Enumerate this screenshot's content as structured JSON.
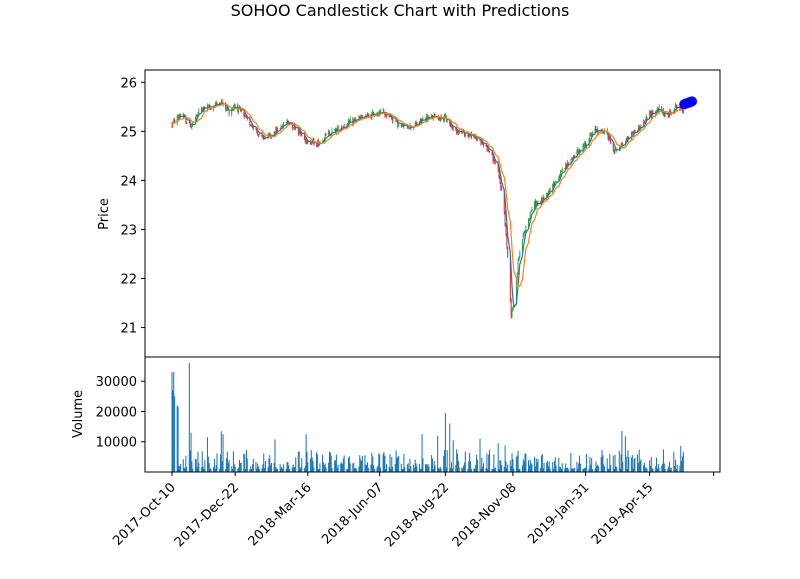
{
  "chart_data": {
    "type": "candlestick",
    "title": "SOHOO Candlestick Chart with Predictions",
    "price_panel": {
      "ylabel": "Price",
      "yticks": [
        21,
        22,
        23,
        24,
        25,
        26
      ],
      "ylim": [
        20.4,
        26.25
      ],
      "up_color": "#2ca02c",
      "down_color": "#d62728",
      "ma_colors": [
        "#1f77b4",
        "#ff7f0e"
      ],
      "prediction_color": "#0000ff",
      "waypoints": [
        [
          "2017-10-10",
          25.15
        ],
        [
          "2017-10-20",
          25.35
        ],
        [
          "2017-11-01",
          25.1
        ],
        [
          "2017-11-12",
          25.45
        ],
        [
          "2017-11-25",
          25.5
        ],
        [
          "2017-12-05",
          25.6
        ],
        [
          "2017-12-15",
          25.4
        ],
        [
          "2017-12-22",
          25.55
        ],
        [
          "2018-01-01",
          25.3
        ],
        [
          "2018-01-12",
          25.1
        ],
        [
          "2018-01-22",
          24.85
        ],
        [
          "2018-02-01",
          24.9
        ],
        [
          "2018-02-10",
          25.05
        ],
        [
          "2018-02-20",
          25.2
        ],
        [
          "2018-03-01",
          25.1
        ],
        [
          "2018-03-10",
          24.9
        ],
        [
          "2018-03-16",
          24.8
        ],
        [
          "2018-03-28",
          24.75
        ],
        [
          "2018-04-08",
          24.95
        ],
        [
          "2018-04-20",
          25.05
        ],
        [
          "2018-05-01",
          25.15
        ],
        [
          "2018-05-12",
          25.25
        ],
        [
          "2018-05-24",
          25.3
        ],
        [
          "2018-06-07",
          25.4
        ],
        [
          "2018-06-20",
          25.3
        ],
        [
          "2018-07-01",
          25.1
        ],
        [
          "2018-07-15",
          25.1
        ],
        [
          "2018-07-28",
          25.25
        ],
        [
          "2018-08-10",
          25.3
        ],
        [
          "2018-08-22",
          25.25
        ],
        [
          "2018-09-01",
          25.05
        ],
        [
          "2018-09-15",
          24.95
        ],
        [
          "2018-09-28",
          24.85
        ],
        [
          "2018-10-10",
          24.65
        ],
        [
          "2018-10-20",
          24.3
        ],
        [
          "2018-10-28",
          23.6
        ],
        [
          "2018-11-02",
          22.4
        ],
        [
          "2018-11-06",
          21.3
        ],
        [
          "2018-11-10",
          21.6
        ],
        [
          "2018-11-15",
          22.5
        ],
        [
          "2018-11-22",
          23.0
        ],
        [
          "2018-12-01",
          23.5
        ],
        [
          "2018-12-10",
          23.55
        ],
        [
          "2018-12-20",
          23.8
        ],
        [
          "2019-01-01",
          24.1
        ],
        [
          "2019-01-15",
          24.45
        ],
        [
          "2019-01-31",
          24.75
        ],
        [
          "2019-02-12",
          25.05
        ],
        [
          "2019-02-25",
          24.95
        ],
        [
          "2019-03-05",
          24.6
        ],
        [
          "2019-03-15",
          24.75
        ],
        [
          "2019-03-25",
          24.95
        ],
        [
          "2019-04-05",
          25.1
        ],
        [
          "2019-04-15",
          25.35
        ],
        [
          "2019-04-25",
          25.45
        ],
        [
          "2019-05-05",
          25.3
        ],
        [
          "2019-05-14",
          25.5
        ],
        [
          "2019-05-24",
          25.45
        ]
      ],
      "predictions": {
        "x_start": "2019-05-25",
        "x_end": "2019-06-03",
        "values": [
          25.55,
          25.56,
          25.57,
          25.57,
          25.58,
          25.58,
          25.59,
          25.6,
          25.6,
          25.61
        ]
      }
    },
    "volume_panel": {
      "ylabel": "Volume",
      "yticks": [
        10000,
        20000,
        30000
      ],
      "ylim": [
        0,
        38000
      ],
      "bar_color": "#1f77b4",
      "spikes": [
        [
          "2017-10-10",
          33000
        ],
        [
          "2017-10-11",
          27000
        ],
        [
          "2017-10-12",
          33000
        ],
        [
          "2017-10-13",
          25000
        ],
        [
          "2017-10-16",
          22000
        ],
        [
          "2017-10-17",
          21500
        ],
        [
          "2017-10-30",
          36000
        ],
        [
          "2017-11-01",
          13000
        ],
        [
          "2017-11-20",
          11500
        ],
        [
          "2017-12-06",
          13500
        ],
        [
          "2017-12-08",
          12500
        ],
        [
          "2018-02-06",
          10800
        ],
        [
          "2018-03-14",
          12500
        ],
        [
          "2018-07-26",
          12500
        ],
        [
          "2018-08-13",
          12000
        ],
        [
          "2018-08-22",
          19500
        ],
        [
          "2018-08-27",
          16000
        ],
        [
          "2018-08-31",
          10500
        ],
        [
          "2018-10-01",
          11000
        ],
        [
          "2018-10-22",
          9500
        ],
        [
          "2018-10-30",
          8800
        ],
        [
          "2019-03-14",
          13600
        ],
        [
          "2019-03-18",
          11800
        ],
        [
          "2019-05-21",
          8600
        ]
      ]
    },
    "x_axis": {
      "type": "date",
      "ticks": [
        "2017-Oct-10",
        "2017-Dec-22",
        "2018-Mar-16",
        "2018-Jun-07",
        "2018-Aug-22",
        "2018-Nov-08",
        "2019-Jan-31",
        "2019-Apr-15"
      ],
      "range": [
        "2017-10-10",
        "2019-06-03"
      ]
    }
  }
}
